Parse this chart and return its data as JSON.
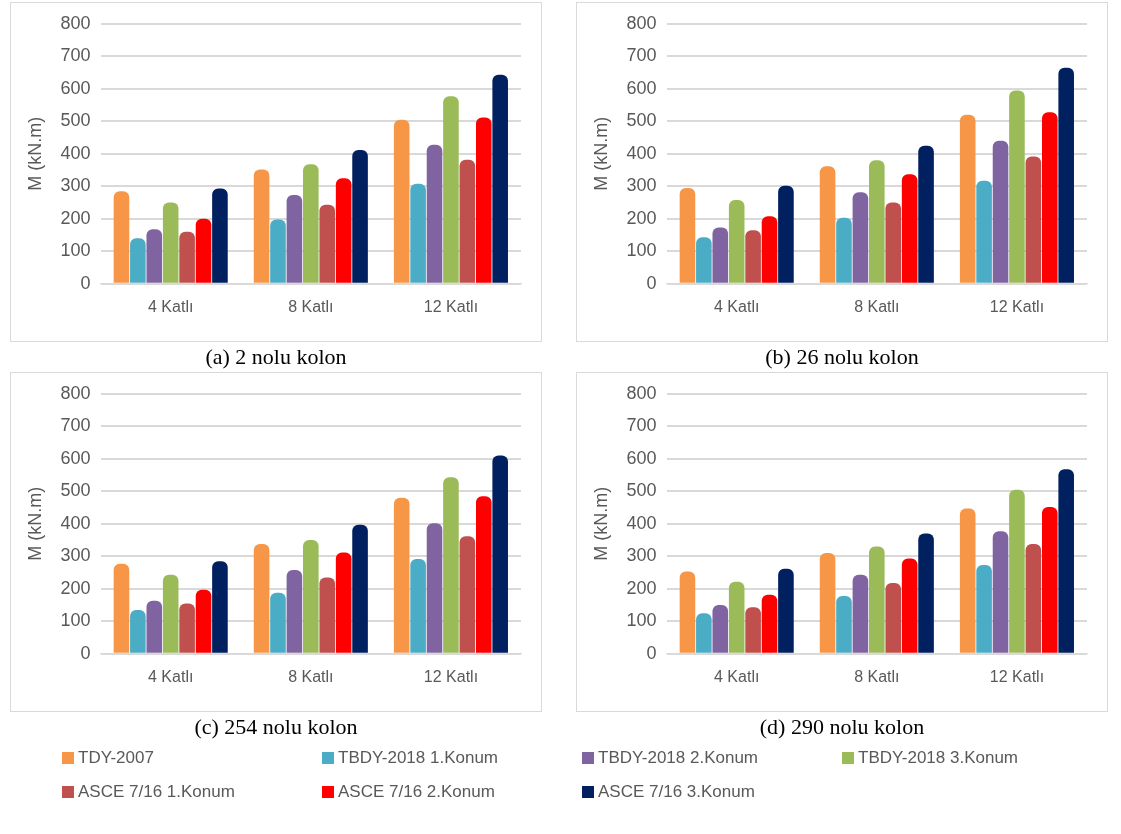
{
  "chart_data": [
    {
      "type": "bar",
      "title": "(a) 2 nolu kolon",
      "ylabel": "M (kN.m)",
      "categories": [
        "4 Katlı",
        "8 Katlı",
        "12 Katlı"
      ],
      "ylim": [
        0,
        800
      ],
      "yticks": [
        0,
        100,
        200,
        300,
        400,
        500,
        600,
        700,
        800
      ],
      "grid": "y",
      "series": [
        {
          "color": "#f79646",
          "values": [
            285,
            352,
            505
          ]
        },
        {
          "color": "#4bacc6",
          "values": [
            140,
            198,
            308
          ]
        },
        {
          "color": "#8064a2",
          "values": [
            168,
            273,
            428
          ]
        },
        {
          "color": "#9bbb59",
          "values": [
            250,
            368,
            577
          ]
        },
        {
          "color": "#c0504d",
          "values": [
            160,
            243,
            382
          ]
        },
        {
          "color": "#ff0000",
          "values": [
            200,
            325,
            512
          ]
        },
        {
          "color": "#002060",
          "values": [
            293,
            412,
            643
          ]
        }
      ]
    },
    {
      "type": "bar",
      "title": "(b) 26 nolu kolon",
      "ylabel": "M (kN.m)",
      "categories": [
        "4 Katlı",
        "8 Katlı",
        "12 Katlı"
      ],
      "ylim": [
        0,
        800
      ],
      "yticks": [
        0,
        100,
        200,
        300,
        400,
        500,
        600,
        700,
        800
      ],
      "grid": "y",
      "series": [
        {
          "color": "#f79646",
          "values": [
            295,
            362,
            520
          ]
        },
        {
          "color": "#4bacc6",
          "values": [
            143,
            203,
            317
          ]
        },
        {
          "color": "#8064a2",
          "values": [
            173,
            282,
            440
          ]
        },
        {
          "color": "#9bbb59",
          "values": [
            258,
            380,
            595
          ]
        },
        {
          "color": "#c0504d",
          "values": [
            165,
            250,
            392
          ]
        },
        {
          "color": "#ff0000",
          "values": [
            208,
            337,
            528
          ]
        },
        {
          "color": "#002060",
          "values": [
            302,
            425,
            665
          ]
        }
      ]
    },
    {
      "type": "bar",
      "title": "(c) 254 nolu kolon",
      "ylabel": "M (kN.m)",
      "categories": [
        "4 Katlı",
        "8 Katlı",
        "12 Katlı"
      ],
      "ylim": [
        0,
        800
      ],
      "yticks": [
        0,
        100,
        200,
        300,
        400,
        500,
        600,
        700,
        800
      ],
      "grid": "y",
      "series": [
        {
          "color": "#f79646",
          "values": [
            277,
            338,
            480
          ]
        },
        {
          "color": "#4bacc6",
          "values": [
            135,
            188,
            292
          ]
        },
        {
          "color": "#8064a2",
          "values": [
            163,
            258,
            402
          ]
        },
        {
          "color": "#9bbb59",
          "values": [
            243,
            350,
            543
          ]
        },
        {
          "color": "#c0504d",
          "values": [
            155,
            235,
            362
          ]
        },
        {
          "color": "#ff0000",
          "values": [
            197,
            312,
            485
          ]
        },
        {
          "color": "#002060",
          "values": [
            285,
            397,
            610
          ]
        }
      ]
    },
    {
      "type": "bar",
      "title": "(d) 290 nolu kolon",
      "ylabel": "M (kN.m)",
      "categories": [
        "4 Katlı",
        "8 Katlı",
        "12 Katlı"
      ],
      "ylim": [
        0,
        800
      ],
      "yticks": [
        0,
        100,
        200,
        300,
        400,
        500,
        600,
        700,
        800
      ],
      "grid": "y",
      "legend": "bottom",
      "series": [
        {
          "name": "TDY-2007",
          "color": "#f79646",
          "values": [
            253,
            310,
            447
          ]
        },
        {
          "name": "TBDY-2018 1.Konum",
          "color": "#4bacc6",
          "values": [
            125,
            178,
            273
          ]
        },
        {
          "name": "TBDY-2018 2.Konum",
          "color": "#8064a2",
          "values": [
            150,
            243,
            377
          ]
        },
        {
          "name": "TBDY-2018 3.Konum",
          "color": "#9bbb59",
          "values": [
            222,
            330,
            505
          ]
        },
        {
          "name": "ASCE 7/16 1.Konum",
          "color": "#c0504d",
          "values": [
            143,
            218,
            338
          ]
        },
        {
          "name": "ASCE 7/16 2.Konum",
          "color": "#ff0000",
          "values": [
            182,
            293,
            452
          ]
        },
        {
          "name": "ASCE 7/16 3.Konum",
          "color": "#002060",
          "values": [
            262,
            370,
            568
          ]
        }
      ]
    }
  ]
}
